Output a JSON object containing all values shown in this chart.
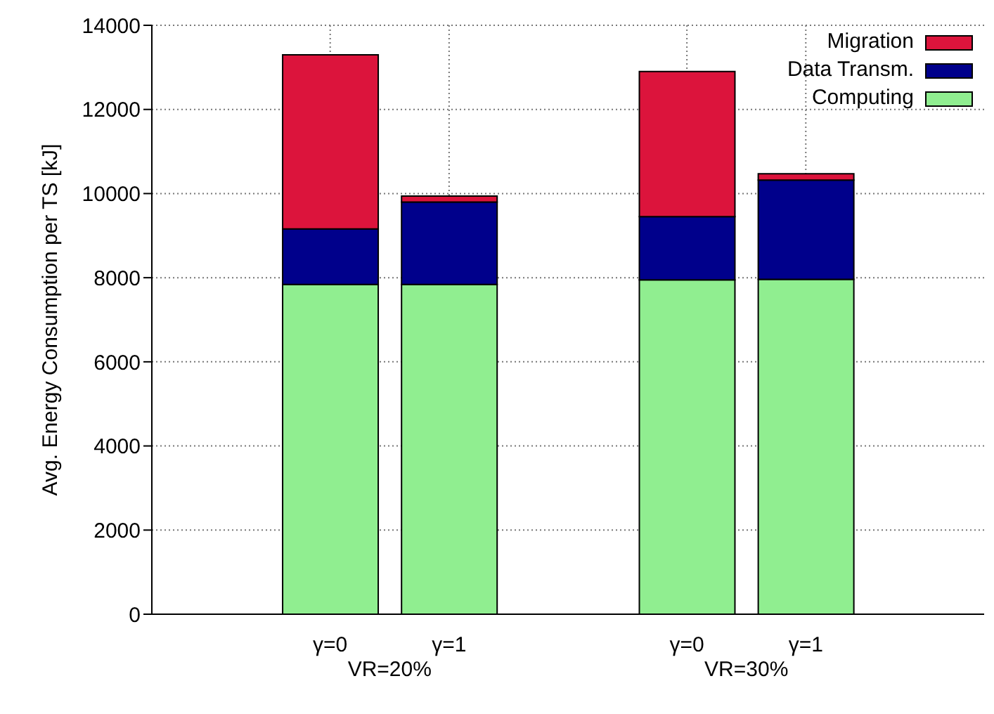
{
  "chart_data": {
    "type": "bar",
    "stacked": true,
    "ylabel": "Avg. Energy Consumption per TS [kJ]",
    "categories": [
      null,
      "γ=0",
      "γ=1",
      null,
      "γ=0",
      "γ=1",
      null
    ],
    "series": [
      {
        "name": "Computing",
        "color": "#90ee90",
        "values": [
          null,
          7840,
          7840,
          null,
          7950,
          7960,
          null
        ]
      },
      {
        "name": "Data Transm.",
        "color": "#00008b",
        "values": [
          null,
          1320,
          1960,
          null,
          1500,
          2360,
          null
        ]
      },
      {
        "name": "Migration",
        "color": "#dc143c",
        "values": [
          null,
          4140,
          140,
          null,
          3450,
          150,
          null
        ]
      }
    ],
    "annotations": [
      "VR=20%",
      "VR=30%"
    ],
    "ylim": [
      0,
      14000
    ],
    "yticks": [
      0,
      2000,
      4000,
      6000,
      8000,
      10000,
      12000,
      14000
    ],
    "grid": true,
    "legend": "top right"
  }
}
